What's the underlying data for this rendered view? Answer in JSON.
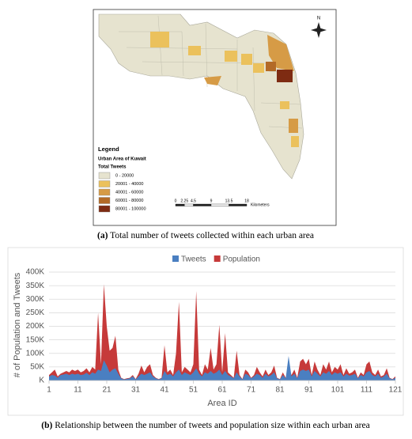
{
  "map": {
    "north": "N",
    "legend": {
      "title": "Legend",
      "subtitle": "Urban Area of Kuwait",
      "field": "Total Tweets",
      "items": [
        {
          "label": "0 - 20000",
          "color": "#e6e3cf"
        },
        {
          "label": "20001 - 40000",
          "color": "#ebc15c"
        },
        {
          "label": "40001 - 60000",
          "color": "#d69b46"
        },
        {
          "label": "60001 - 80000",
          "color": "#b36a26"
        },
        {
          "label": "80001 - 100000",
          "color": "#7e2b12"
        }
      ]
    },
    "scale": {
      "ticks": [
        0,
        2.25,
        4.5,
        9,
        13.5,
        18
      ],
      "unit": "Kilometers"
    }
  },
  "caption_a": {
    "label": "(a)",
    "text": "Total number of tweets collected within each urban area"
  },
  "chart_data": {
    "type": "area",
    "y_label": "# of Population and Tweets",
    "x_label": "Area ID",
    "x": [
      1,
      2,
      3,
      4,
      5,
      6,
      7,
      8,
      9,
      10,
      11,
      12,
      13,
      14,
      15,
      16,
      17,
      18,
      19,
      20,
      21,
      22,
      23,
      24,
      25,
      26,
      27,
      28,
      29,
      30,
      31,
      32,
      33,
      34,
      35,
      36,
      37,
      38,
      39,
      40,
      41,
      42,
      43,
      44,
      45,
      46,
      47,
      48,
      49,
      50,
      51,
      52,
      53,
      54,
      55,
      56,
      57,
      58,
      59,
      60,
      61,
      62,
      63,
      64,
      65,
      66,
      67,
      68,
      69,
      70,
      71,
      72,
      73,
      74,
      75,
      76,
      77,
      78,
      79,
      80,
      81,
      82,
      83,
      84,
      85,
      86,
      87,
      88,
      89,
      90,
      91,
      92,
      93,
      94,
      95,
      96,
      97,
      98,
      99,
      100,
      101,
      102,
      103,
      104,
      105,
      106,
      107,
      108,
      109,
      110,
      111,
      112,
      113,
      114,
      115,
      116,
      117,
      118,
      119,
      120,
      121
    ],
    "xlim": [
      1,
      121
    ],
    "xticks": [
      1,
      11,
      21,
      31,
      41,
      51,
      61,
      71,
      81,
      91,
      101,
      111,
      121
    ],
    "ylim": [
      0,
      400000
    ],
    "yticks": [
      {
        "value": 0,
        "label": "K"
      },
      {
        "value": 50000,
        "label": "50K"
      },
      {
        "value": 100000,
        "label": "100K"
      },
      {
        "value": 150000,
        "label": "150K"
      },
      {
        "value": 200000,
        "label": "200K"
      },
      {
        "value": 250000,
        "label": "250K"
      },
      {
        "value": 300000,
        "label": "300K"
      },
      {
        "value": 350000,
        "label": "350K"
      },
      {
        "value": 400000,
        "label": "400K"
      }
    ],
    "grid": true,
    "legend": "top",
    "series": [
      {
        "name": "Population",
        "color": "#c63a3a",
        "values": [
          20000,
          30000,
          40000,
          15000,
          25000,
          30000,
          35000,
          30000,
          40000,
          35000,
          40000,
          30000,
          35000,
          45000,
          30000,
          50000,
          40000,
          250000,
          60000,
          355000,
          200000,
          110000,
          120000,
          165000,
          40000,
          10000,
          5000,
          8000,
          10000,
          20000,
          5000,
          25000,
          55000,
          30000,
          50000,
          60000,
          20000,
          10000,
          5000,
          10000,
          130000,
          30000,
          40000,
          20000,
          100000,
          290000,
          30000,
          50000,
          40000,
          30000,
          60000,
          330000,
          40000,
          20000,
          60000,
          40000,
          120000,
          40000,
          60000,
          205000,
          30000,
          175000,
          30000,
          20000,
          10000,
          110000,
          20000,
          5000,
          40000,
          30000,
          10000,
          20000,
          50000,
          30000,
          15000,
          40000,
          20000,
          30000,
          55000,
          10000,
          5000,
          30000,
          10000,
          50000,
          20000,
          40000,
          10000,
          70000,
          80000,
          60000,
          80000,
          20000,
          70000,
          40000,
          20000,
          60000,
          40000,
          70000,
          30000,
          50000,
          40000,
          60000,
          20000,
          45000,
          25000,
          30000,
          40000,
          10000,
          30000,
          20000,
          60000,
          70000,
          30000,
          20000,
          40000,
          15000,
          20000,
          45000,
          10000,
          5000,
          15000
        ]
      },
      {
        "name": "Tweets",
        "color": "#4a7fc1",
        "values": [
          15000,
          20000,
          18000,
          10000,
          20000,
          22000,
          25000,
          20000,
          25000,
          22000,
          25000,
          20000,
          22000,
          28000,
          20000,
          30000,
          25000,
          40000,
          35000,
          75000,
          55000,
          30000,
          40000,
          45000,
          25000,
          8000,
          4000,
          6000,
          8000,
          15000,
          4000,
          15000,
          25000,
          20000,
          25000,
          30000,
          15000,
          8000,
          4000,
          8000,
          35000,
          20000,
          25000,
          15000,
          30000,
          40000,
          20000,
          30000,
          25000,
          20000,
          30000,
          45000,
          25000,
          15000,
          30000,
          25000,
          35000,
          25000,
          30000,
          40000,
          20000,
          35000,
          20000,
          15000,
          8000,
          30000,
          15000,
          4000,
          25000,
          20000,
          8000,
          15000,
          25000,
          20000,
          10000,
          25000,
          15000,
          20000,
          30000,
          8000,
          4000,
          20000,
          8000,
          90000,
          15000,
          25000,
          8000,
          35000,
          40000,
          35000,
          40000,
          15000,
          35000,
          25000,
          15000,
          30000,
          25000,
          35000,
          20000,
          30000,
          25000,
          30000,
          15000,
          25000,
          18000,
          20000,
          25000,
          8000,
          20000,
          15000,
          30000,
          35000,
          20000,
          15000,
          25000,
          10000,
          15000,
          25000,
          8000,
          4000,
          10000
        ]
      }
    ]
  },
  "caption_b": {
    "label": "(b)",
    "text": "Relationship between the number of tweets and population size within each urban area"
  }
}
